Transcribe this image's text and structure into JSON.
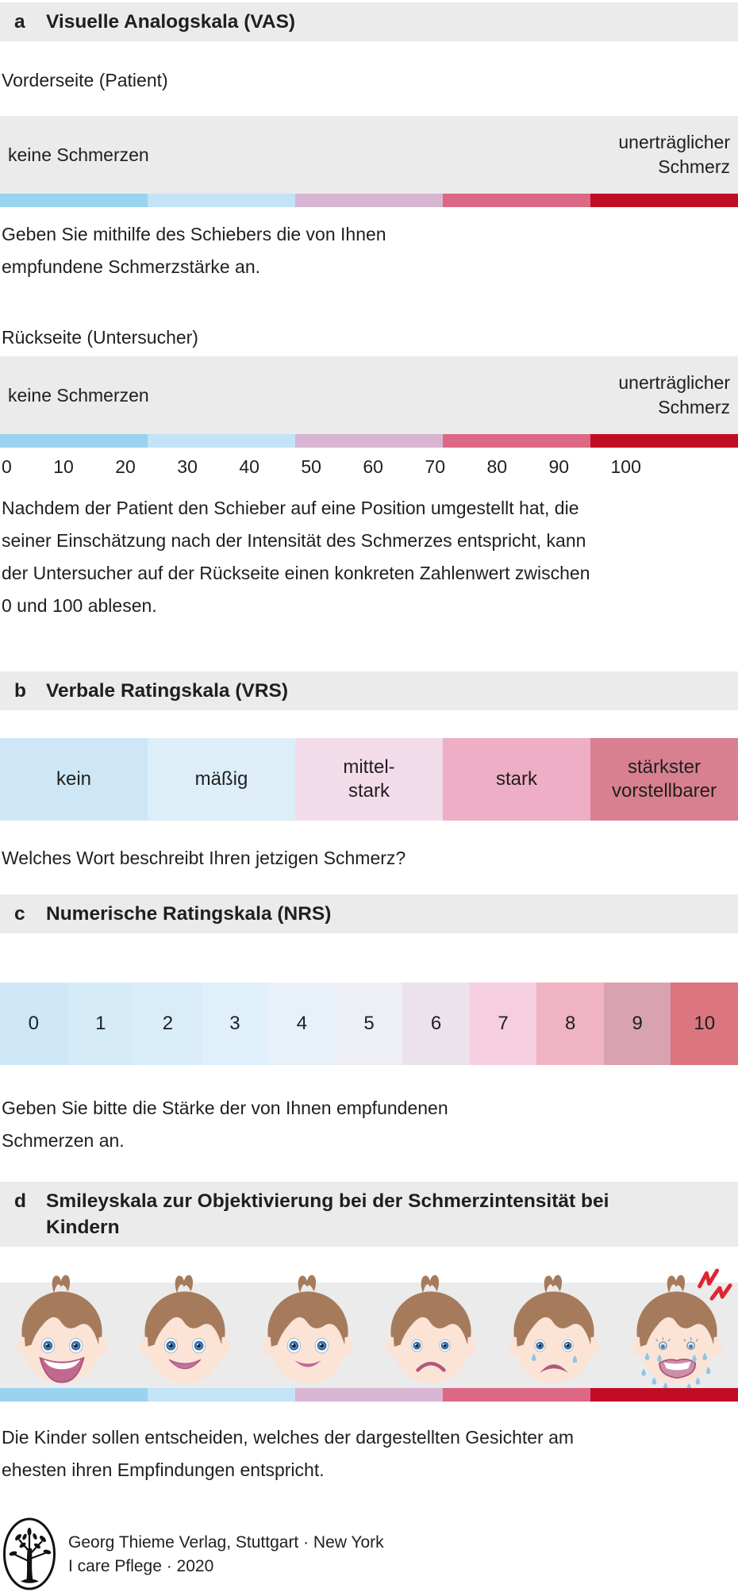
{
  "panels": {
    "a": {
      "label": "a",
      "title": "Visuelle Analogskala (VAS)",
      "front_side_label": "Vorderseite (Patient)",
      "back_side_label": "Rückseite (Untersucher)",
      "scale_min_label": "keine Schmerzen",
      "scale_max_label": "unerträglicher Schmerz",
      "front_caption": "Geben Sie mithilfe des Schiebers die von Ihnen empfundene Schmerzstärke an.",
      "back_ticks": [
        "0",
        "10",
        "20",
        "30",
        "40",
        "50",
        "60",
        "70",
        "80",
        "90",
        "100"
      ],
      "back_caption": "Nachdem der Patient den Schieber auf eine Position umgestellt hat, die seiner Einschätzung nach der Intensität des Schmerzes entspricht, kann der Untersucher auf der Rückseite einen konkreten Zahlenwert zwischen 0 und 100 ablesen.",
      "gradient_colors": [
        "#99d3ef",
        "#c3e3f6",
        "#d8b5d3",
        "#dd6886",
        "#c10d24"
      ]
    },
    "b": {
      "label": "b",
      "title": "Verbale Ratingskala (VRS)",
      "cells": [
        {
          "label": "kein",
          "color": "#cde7f6"
        },
        {
          "label": "mäßig",
          "color": "#ddeef9"
        },
        {
          "label": "mittel-\nstark",
          "color": "#f2dcea"
        },
        {
          "label": "stark",
          "color": "#eeaec6"
        },
        {
          "label": "stärkster\nvorstellbarer",
          "color": "#d98090"
        }
      ],
      "caption": "Welches Wort beschreibt Ihren jetzigen Schmerz?"
    },
    "c": {
      "label": "c",
      "title": "Numerische Ratingskala (NRS)",
      "cells": [
        {
          "label": "0",
          "color": "#cfe8f7"
        },
        {
          "label": "1",
          "color": "#d5ebf8"
        },
        {
          "label": "2",
          "color": "#d9edf8"
        },
        {
          "label": "3",
          "color": "#dff0fa"
        },
        {
          "label": "4",
          "color": "#e8f0f9"
        },
        {
          "label": "5",
          "color": "#edeef6"
        },
        {
          "label": "6",
          "color": "#ece2ee"
        },
        {
          "label": "7",
          "color": "#f5cfdf"
        },
        {
          "label": "8",
          "color": "#f0b3c3"
        },
        {
          "label": "9",
          "color": "#d8a2b0"
        },
        {
          "label": "10",
          "color": "#db767f"
        }
      ],
      "caption": "Geben Sie bitte die Stärke der von Ihnen empfundenen Schmerzen an."
    },
    "d": {
      "label": "d",
      "title": "Smileyskala zur Objektivierung bei der Schmerzintensität bei Kindern",
      "faces": [
        "laughing",
        "smiling-open",
        "smiling",
        "sad",
        "crying",
        "crying-in-pain"
      ],
      "gradient_colors": [
        "#99d3ef",
        "#c3e3f6",
        "#d8b5d3",
        "#dd6886",
        "#c10d24"
      ],
      "caption": "Die Kinder sollen entscheiden, welches der dargestellten Gesichter am ehesten ihren Empfindungen entspricht."
    }
  },
  "footer": {
    "publisher": "Georg Thieme Verlag, Stuttgart · New York",
    "source": "I care Pflege · 2020"
  },
  "theme": {
    "header_bg": "#ebebeb",
    "box_bg": "#ebebeb",
    "text": "#1f1f1f",
    "pain_red": "#c10d24",
    "tear_blue": "#8ec6ea",
    "zigzag_red": "#e02531",
    "hair_brown": "#a57b5c",
    "skin": "#fbe3d6"
  }
}
